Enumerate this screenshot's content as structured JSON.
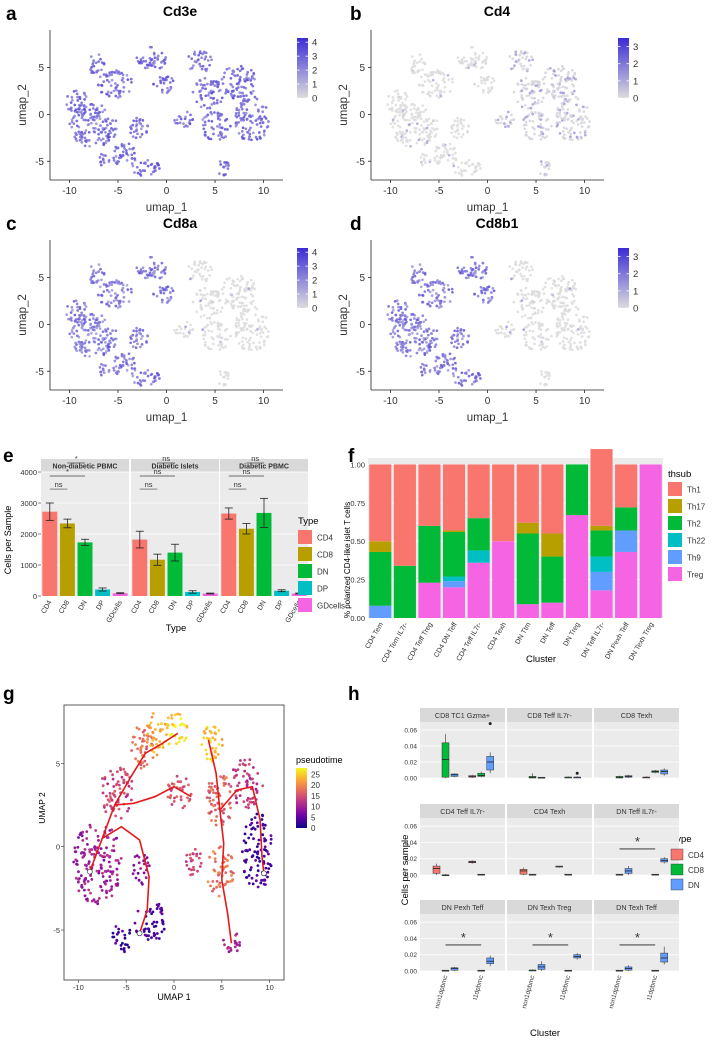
{
  "colors": {
    "umap_high": "#3b2bd6",
    "umap_low": "#dcdcdc",
    "CD4": "#f8766d",
    "CD8": "#b79f00",
    "DN": "#00ba38",
    "DP": "#00bfc4",
    "GDcells": "#f564e3",
    "box_CD4": "#f8766d",
    "box_CD8": "#00ba38",
    "box_DN": "#619cff",
    "Th1": "#f8766d",
    "Th17": "#b79f00",
    "Th2": "#00ba38",
    "Th22": "#00bfc4",
    "Th9": "#619cff",
    "Treg": "#f564e3"
  },
  "chart_data": [
    {
      "id": "a",
      "panel_label": "a",
      "type": "scatter",
      "title": "Cd3e",
      "xlabel": "umap_1",
      "ylabel": "umap_2",
      "xticks": [
        "-10",
        "-5",
        "0",
        "5",
        "10"
      ],
      "yticks": [
        "5",
        "0",
        "-5"
      ],
      "xlim": [
        -12,
        12
      ],
      "ylim": [
        -7,
        9
      ],
      "colorbar_ticks": [
        "4",
        "3",
        "2",
        "1",
        "0"
      ],
      "colorbar_max": 4.3,
      "expression": "pan"
    },
    {
      "id": "b",
      "panel_label": "b",
      "type": "scatter",
      "title": "Cd4",
      "xlabel": "umap_1",
      "ylabel": "umap_2",
      "xticks": [
        "-10",
        "-5",
        "0",
        "5",
        "10"
      ],
      "yticks": [
        "5",
        "0",
        "-5"
      ],
      "xlim": [
        -12,
        12
      ],
      "ylim": [
        -7,
        9
      ],
      "colorbar_ticks": [
        "3",
        "2",
        "1",
        "0"
      ],
      "colorbar_max": 3.5,
      "expression": "cd4"
    },
    {
      "id": "c",
      "panel_label": "c",
      "type": "scatter",
      "title": "Cd8a",
      "xlabel": "umap_1",
      "ylabel": "umap_2",
      "xticks": [
        "-10",
        "-5",
        "0",
        "5",
        "10"
      ],
      "yticks": [
        "5",
        "0",
        "-5"
      ],
      "xlim": [
        -12,
        12
      ],
      "ylim": [
        -7,
        9
      ],
      "colorbar_ticks": [
        "4",
        "3",
        "2",
        "1",
        "0"
      ],
      "colorbar_max": 4.3,
      "expression": "cd8"
    },
    {
      "id": "d",
      "panel_label": "d",
      "type": "scatter",
      "title": "Cd8b1",
      "xlabel": "umap_1",
      "ylabel": "umap_2",
      "xticks": [
        "-10",
        "-5",
        "0",
        "5",
        "10"
      ],
      "yticks": [
        "5",
        "0",
        "-5"
      ],
      "xlim": [
        -12,
        12
      ],
      "ylim": [
        -7,
        9
      ],
      "colorbar_ticks": [
        "3",
        "2",
        "1",
        "0"
      ],
      "colorbar_max": 3.5,
      "expression": "cd8"
    },
    {
      "id": "e",
      "panel_label": "e",
      "type": "bar",
      "ylabel": "Cells per Sample",
      "xlabel": "Type",
      "ylim": [
        0,
        4000
      ],
      "yticks": [
        "0",
        "1000",
        "2000",
        "3000",
        "4000"
      ],
      "categories": [
        "CD4",
        "CD8",
        "DN",
        "DP",
        "GDcells"
      ],
      "legend_title": "Type",
      "facets": [
        {
          "name": "Non-diabetic PBMC",
          "values": [
            2720,
            2340,
            1730,
            210,
            90
          ],
          "errors": [
            280,
            140,
            100,
            50,
            15
          ],
          "annotations": [
            {
              "label": "ns",
              "from": 0,
              "to": 1,
              "level": 0
            },
            {
              "label": "*",
              "from": 0,
              "to": 2,
              "level": 1
            },
            {
              "label": "*",
              "from": 1,
              "to": 2,
              "level": 2
            }
          ]
        },
        {
          "name": "Diabetic Islets",
          "values": [
            1820,
            1170,
            1400,
            130,
            80
          ],
          "errors": [
            270,
            180,
            270,
            40,
            15
          ],
          "annotations": [
            {
              "label": "ns",
              "from": 0,
              "to": 1,
              "level": 0
            },
            {
              "label": "ns",
              "from": 0,
              "to": 2,
              "level": 1
            },
            {
              "label": "ns",
              "from": 1,
              "to": 2,
              "level": 2
            }
          ]
        },
        {
          "name": "Diabetic PBMC",
          "values": [
            2660,
            2170,
            2680,
            170,
            80
          ],
          "errors": [
            180,
            170,
            470,
            30,
            15
          ],
          "annotations": [
            {
              "label": "ns",
              "from": 0,
              "to": 1,
              "level": 0
            },
            {
              "label": "ns",
              "from": 0,
              "to": 2,
              "level": 1
            },
            {
              "label": "ns",
              "from": 1,
              "to": 2,
              "level": 2
            }
          ]
        }
      ]
    },
    {
      "id": "f",
      "panel_label": "f",
      "type": "bar",
      "stacked": true,
      "ylabel": "% polarized CD4-like islet T cells",
      "xlabel": "Cluster",
      "ylim": [
        0,
        1
      ],
      "yticks": [
        "0.00",
        "0.25",
        "0.50",
        "0.75",
        "1.00"
      ],
      "legend_title": "thsub",
      "stack_order": [
        "Treg",
        "Th9",
        "Th22",
        "Th2",
        "Th17",
        "Th1"
      ],
      "categories": [
        "CD4 Tem",
        "CD4 Tem IL7r-",
        "CD4 Teff Treg",
        "CD4 DN Teff",
        "CD4 Teff IL7r-",
        "CD4 Texh",
        "DN Ttm",
        "DN Teff",
        "DN Treg",
        "DN Teff IL7r-",
        "DN Pexh Teff",
        "DN Texh Treg"
      ],
      "series": [
        {
          "name": "Th1",
          "values": [
            0.5,
            0.66,
            0.4,
            0.43,
            0.35,
            0.5,
            0.38,
            0.45,
            0.0,
            0.5,
            0.28,
            0.0
          ]
        },
        {
          "name": "Th17",
          "values": [
            0.07,
            0.0,
            0.0,
            0.01,
            0.0,
            0.0,
            0.07,
            0.15,
            0.0,
            0.03,
            0.0,
            0.0
          ]
        },
        {
          "name": "Th2",
          "values": [
            0.35,
            0.34,
            0.37,
            0.29,
            0.21,
            0.0,
            0.46,
            0.3,
            0.33,
            0.17,
            0.15,
            0.0
          ]
        },
        {
          "name": "Th22",
          "values": [
            0.0,
            0.0,
            0.0,
            0.03,
            0.08,
            0.0,
            0.0,
            0.0,
            0.0,
            0.1,
            0.0,
            0.0
          ]
        },
        {
          "name": "Th9",
          "values": [
            0.08,
            0.0,
            0.0,
            0.04,
            0.0,
            0.0,
            0.0,
            0.0,
            0.0,
            0.12,
            0.14,
            0.0
          ]
        },
        {
          "name": "Treg",
          "values": [
            0.0,
            0.0,
            0.23,
            0.2,
            0.36,
            0.5,
            0.09,
            0.1,
            0.67,
            0.18,
            0.43,
            1.0
          ]
        }
      ]
    },
    {
      "id": "g",
      "panel_label": "g",
      "type": "scatter",
      "xlabel": "UMAP 1",
      "ylabel": "UMAP 2",
      "xticks": [
        "-10",
        "-5",
        "0",
        "5",
        "10"
      ],
      "yticks": [
        "5",
        "0",
        "-5"
      ],
      "xlim": [
        -11.5,
        11.5
      ],
      "ylim": [
        -8,
        8.5
      ],
      "colorbar_title": "pseudotime",
      "colorbar_ticks": [
        "25",
        "20",
        "15",
        "10",
        "5",
        "0"
      ],
      "colorbar_max": 28
    },
    {
      "id": "h",
      "panel_label": "h",
      "type": "box",
      "ylabel": "Cells per sample",
      "xlabel": "Cluster",
      "ylim": [
        0,
        0.07
      ],
      "yticks": [
        "0.00",
        "0.02",
        "0.04",
        "0.06"
      ],
      "xticks": [
        "non1dpbmc",
        "t1dpbmc"
      ],
      "legend_title": "Type",
      "legend_entries": [
        "CD4",
        "CD8",
        "DN"
      ],
      "facets": [
        {
          "name": "CD8 TC1 Gzma+",
          "sig": "",
          "boxes": [
            {
              "g": 0,
              "t": 1,
              "q": [
                0.0,
                0.001,
                0.023,
                0.044,
                0.055
              ]
            },
            {
              "g": 0,
              "t": 2,
              "q": [
                0.001,
                0.002,
                0.004,
                0.005,
                0.006
              ]
            },
            {
              "g": 1,
              "t": 1,
              "q": [
                0.001,
                0.002,
                0.003,
                0.006,
                0.008
              ]
            },
            {
              "g": 1,
              "t": 2,
              "q": [
                0.006,
                0.01,
                0.02,
                0.027,
                0.032
              ],
              "out": [
                0.068
              ]
            },
            {
              "g": 1,
              "t": 0,
              "q": [
                0.0,
                0.001,
                0.002,
                0.003,
                0.004
              ]
            }
          ]
        },
        {
          "name": "CD8 Teff IL7r-",
          "sig": "",
          "boxes": [
            {
              "g": 0,
              "t": 1,
              "q": [
                0.0,
                0.0,
                0.001,
                0.002,
                0.006
              ]
            },
            {
              "g": 0,
              "t": 2,
              "q": [
                0.0,
                0.0,
                0.0,
                0.001,
                0.001
              ]
            },
            {
              "g": 1,
              "t": 1,
              "q": [
                0.0,
                0.0,
                0.001,
                0.001,
                0.002
              ]
            },
            {
              "g": 1,
              "t": 2,
              "q": [
                0.0,
                0.0,
                0.001,
                0.001,
                0.002
              ],
              "out": [
                0.006
              ]
            }
          ]
        },
        {
          "name": "CD8 Texh",
          "sig": "",
          "boxes": [
            {
              "g": 0,
              "t": 1,
              "q": [
                0.0,
                0.0,
                0.001,
                0.002,
                0.003
              ]
            },
            {
              "g": 0,
              "t": 2,
              "q": [
                0.0,
                0.001,
                0.002,
                0.003,
                0.004
              ]
            },
            {
              "g": 1,
              "t": 1,
              "q": [
                0.006,
                0.007,
                0.008,
                0.009,
                0.01
              ]
            },
            {
              "g": 1,
              "t": 2,
              "q": [
                0.003,
                0.005,
                0.008,
                0.01,
                0.012
              ]
            },
            {
              "g": 1,
              "t": 0,
              "q": [
                0.0,
                0.0,
                0.001,
                0.001,
                0.002
              ]
            }
          ]
        },
        {
          "name": "CD4 Teff IL7r-",
          "sig": "",
          "boxes": [
            {
              "g": 0,
              "t": 0,
              "q": [
                0.0,
                0.002,
                0.008,
                0.011,
                0.014
              ]
            },
            {
              "g": 0,
              "t": 1,
              "q": [
                0.0,
                0.0,
                0.0,
                0.0,
                0.001
              ]
            },
            {
              "g": 1,
              "t": 0,
              "q": [
                0.014,
                0.015,
                0.016,
                0.017,
                0.018
              ]
            },
            {
              "g": 1,
              "t": 1,
              "q": [
                0.0,
                0.0,
                0.0,
                0.001,
                0.001
              ]
            }
          ]
        },
        {
          "name": "CD4 Texh",
          "sig": "",
          "boxes": [
            {
              "g": 0,
              "t": 0,
              "q": [
                0.0,
                0.001,
                0.005,
                0.007,
                0.009
              ]
            },
            {
              "g": 0,
              "t": 1,
              "q": [
                0.0,
                0.0,
                0.0,
                0.001,
                0.001
              ]
            },
            {
              "g": 1,
              "t": 0,
              "q": [
                0.009,
                0.01,
                0.01,
                0.011,
                0.011
              ]
            },
            {
              "g": 1,
              "t": 1,
              "q": [
                0.0,
                0.0,
                0.0,
                0.001,
                0.001
              ]
            }
          ]
        },
        {
          "name": "DN Teff IL7r-",
          "sig": "*",
          "boxes": [
            {
              "g": 0,
              "t": 1,
              "q": [
                0.0,
                0.0,
                0.0,
                0.001,
                0.001
              ]
            },
            {
              "g": 0,
              "t": 2,
              "q": [
                0.0,
                0.002,
                0.005,
                0.008,
                0.011
              ]
            },
            {
              "g": 1,
              "t": 1,
              "q": [
                0.0,
                0.0,
                0.0,
                0.001,
                0.001
              ]
            },
            {
              "g": 1,
              "t": 2,
              "q": [
                0.014,
                0.016,
                0.018,
                0.02,
                0.022
              ]
            }
          ]
        },
        {
          "name": "DN Pexh Teff",
          "sig": "*",
          "boxes": [
            {
              "g": 0,
              "t": 1,
              "q": [
                0.0,
                0.0,
                0.0,
                0.001,
                0.001
              ]
            },
            {
              "g": 0,
              "t": 2,
              "q": [
                0.0,
                0.001,
                0.003,
                0.004,
                0.005
              ]
            },
            {
              "g": 1,
              "t": 1,
              "q": [
                0.0,
                0.0,
                0.0,
                0.001,
                0.001
              ]
            },
            {
              "g": 1,
              "t": 2,
              "q": [
                0.006,
                0.009,
                0.012,
                0.016,
                0.019
              ]
            }
          ]
        },
        {
          "name": "DN Texh Treg",
          "sig": "*",
          "boxes": [
            {
              "g": 0,
              "t": 1,
              "q": [
                0.0,
                0.0,
                0.001,
                0.001,
                0.002
              ]
            },
            {
              "g": 0,
              "t": 2,
              "q": [
                0.0,
                0.002,
                0.005,
                0.008,
                0.012
              ]
            },
            {
              "g": 1,
              "t": 1,
              "q": [
                0.0,
                0.0,
                0.0,
                0.001,
                0.001
              ]
            },
            {
              "g": 1,
              "t": 2,
              "q": [
                0.014,
                0.016,
                0.018,
                0.02,
                0.022
              ]
            }
          ]
        },
        {
          "name": "DN Texh Teff",
          "sig": "*",
          "boxes": [
            {
              "g": 0,
              "t": 1,
              "q": [
                0.0,
                0.0,
                0.0,
                0.001,
                0.001
              ]
            },
            {
              "g": 0,
              "t": 2,
              "q": [
                0.0,
                0.001,
                0.003,
                0.005,
                0.007
              ]
            },
            {
              "g": 1,
              "t": 1,
              "q": [
                0.0,
                0.0,
                0.0,
                0.001,
                0.001
              ]
            },
            {
              "g": 1,
              "t": 2,
              "q": [
                0.008,
                0.011,
                0.016,
                0.022,
                0.03
              ]
            }
          ]
        }
      ]
    }
  ]
}
